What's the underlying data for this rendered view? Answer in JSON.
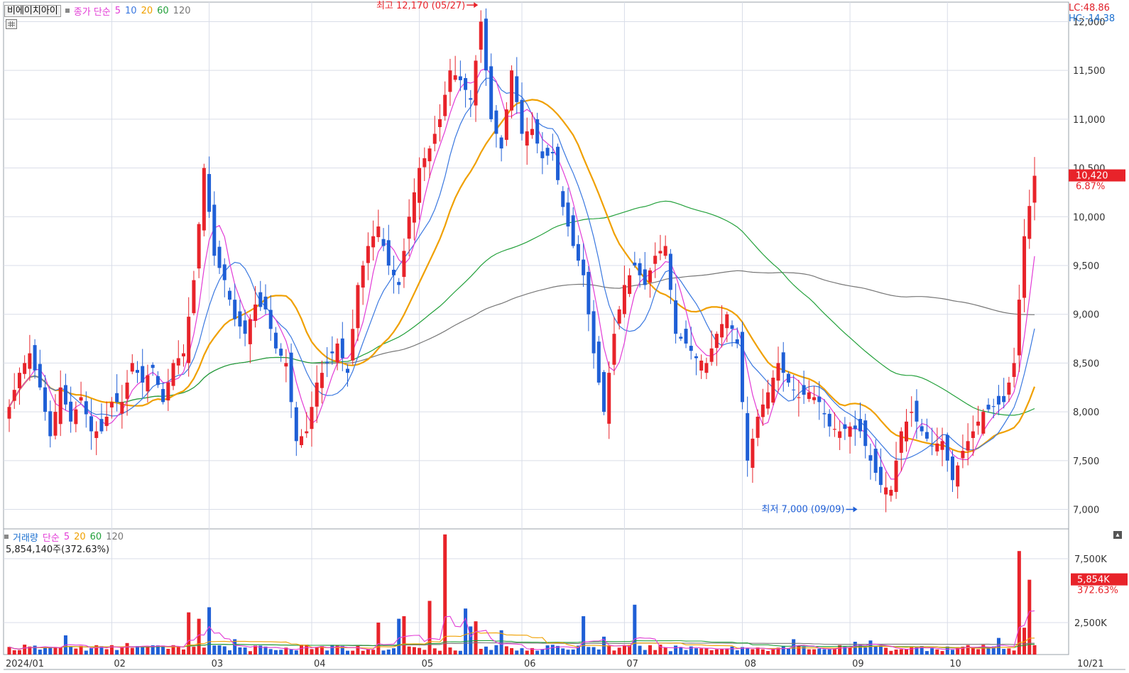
{
  "price_legend": {
    "name": "비에이치아이",
    "label": "종가 단순",
    "ma_labels": [
      "5",
      "10",
      "20",
      "60",
      "120"
    ]
  },
  "volume_legend": {
    "label": "거래량",
    "unit_label": "단순",
    "ma_labels": [
      "5",
      "20",
      "60",
      "120"
    ]
  },
  "volume_readout": "5,854,140주(372.63%)",
  "lc_label": "LC:48.86",
  "hc_label": "HC:-14.38",
  "colors": {
    "up": "#e8232a",
    "down": "#1f5fd6",
    "ma5": "#e23bd6",
    "ma10": "#3a78e0",
    "ma20": "#f0a000",
    "ma60": "#22a03a",
    "ma120": "#777777",
    "grid": "#d9dde8"
  },
  "icons": {
    "table": "table-icon",
    "collapse": "collapse-icon"
  },
  "chart_data": [
    {
      "type": "candlestick",
      "title": "",
      "ylim": [
        6800,
        12200
      ],
      "y_ticks": [
        "12,000",
        "11,500",
        "11,000",
        "10,500",
        "10,000",
        "9,500",
        "9,000",
        "8,500",
        "8,000",
        "7,500",
        "7,000"
      ],
      "y_tick_values": [
        12000,
        11500,
        11000,
        10500,
        10000,
        9500,
        9000,
        8500,
        8000,
        7500,
        7000
      ],
      "x_tick_labels": [
        "2024/01",
        "02",
        "03",
        "04",
        "05",
        "06",
        "07",
        "08",
        "09",
        "10",
        "10/21"
      ],
      "x_tick_days": [
        0,
        20,
        39,
        59,
        80,
        100,
        120,
        143,
        164,
        183,
        196
      ],
      "grid": true,
      "annotations": [
        {
          "text": "최고 12,170 (05/27)",
          "value": 12170,
          "day": 92,
          "kind": "high"
        },
        {
          "text": "최저 7,000 (09/09)",
          "value": 7000,
          "day": 166,
          "kind": "low"
        }
      ],
      "last_price_label": "10,420",
      "last_change_label": "6.87%",
      "last_price": 10420,
      "anchors": [
        [
          0,
          8050
        ],
        [
          2,
          8400
        ],
        [
          4,
          8600
        ],
        [
          6,
          8250
        ],
        [
          8,
          7750
        ],
        [
          10,
          8250
        ],
        [
          12,
          7900
        ],
        [
          14,
          8150
        ],
        [
          16,
          7800
        ],
        [
          18,
          7800
        ],
        [
          20,
          8100
        ],
        [
          22,
          8100
        ],
        [
          24,
          8500
        ],
        [
          26,
          8300
        ],
        [
          28,
          8450
        ],
        [
          30,
          8100
        ],
        [
          32,
          8500
        ],
        [
          34,
          8600
        ],
        [
          36,
          9350
        ],
        [
          38,
          10500
        ],
        [
          40,
          9600
        ],
        [
          42,
          9350
        ],
        [
          44,
          8950
        ],
        [
          46,
          8800
        ],
        [
          48,
          9100
        ],
        [
          50,
          9050
        ],
        [
          52,
          8650
        ],
        [
          54,
          8500
        ],
        [
          56,
          7700
        ],
        [
          58,
          7800
        ],
        [
          60,
          8300
        ],
        [
          62,
          8500
        ],
        [
          64,
          8700
        ],
        [
          66,
          8400
        ],
        [
          68,
          9300
        ],
        [
          70,
          9700
        ],
        [
          72,
          9900
        ],
        [
          74,
          9500
        ],
        [
          76,
          9300
        ],
        [
          78,
          10000
        ],
        [
          80,
          10500
        ],
        [
          82,
          10700
        ],
        [
          84,
          11000
        ],
        [
          86,
          11500
        ],
        [
          88,
          11400
        ],
        [
          90,
          11200
        ],
        [
          92,
          12000
        ],
        [
          94,
          11000
        ],
        [
          96,
          10700
        ],
        [
          98,
          11500
        ],
        [
          100,
          10850
        ],
        [
          102,
          10900
        ],
        [
          104,
          10600
        ],
        [
          106,
          10650
        ],
        [
          108,
          10100
        ],
        [
          110,
          9700
        ],
        [
          112,
          9400
        ],
        [
          114,
          8600
        ],
        [
          116,
          8000
        ],
        [
          118,
          8800
        ],
        [
          120,
          9300
        ],
        [
          122,
          9500
        ],
        [
          124,
          9300
        ],
        [
          126,
          9600
        ],
        [
          128,
          9700
        ],
        [
          130,
          8800
        ],
        [
          132,
          8700
        ],
        [
          134,
          8550
        ],
        [
          136,
          8500
        ],
        [
          138,
          8800
        ],
        [
          140,
          9000
        ],
        [
          142,
          8700
        ],
        [
          144,
          7500
        ],
        [
          146,
          7950
        ],
        [
          148,
          8200
        ],
        [
          150,
          8500
        ],
        [
          152,
          8300
        ],
        [
          154,
          8150
        ],
        [
          156,
          8200
        ],
        [
          158,
          8100
        ],
        [
          160,
          7850
        ],
        [
          162,
          7800
        ],
        [
          164,
          7850
        ],
        [
          166,
          7800
        ],
        [
          168,
          7500
        ],
        [
          170,
          7250
        ],
        [
          172,
          7200
        ],
        [
          174,
          7800
        ],
        [
          176,
          8000
        ],
        [
          178,
          7800
        ],
        [
          180,
          7650
        ],
        [
          182,
          7700
        ],
        [
          184,
          7300
        ],
        [
          186,
          7600
        ],
        [
          188,
          7800
        ],
        [
          190,
          8000
        ],
        [
          192,
          8050
        ],
        [
          194,
          8100
        ],
        [
          196,
          8500
        ],
        [
          198,
          9800
        ],
        [
          200,
          10420
        ]
      ],
      "moving_averages": [
        "5",
        "10",
        "20",
        "60",
        "120"
      ]
    },
    {
      "type": "bar",
      "title": "",
      "ylim": [
        0,
        9500000
      ],
      "y_ticks": [
        "7,500K",
        "2,500K"
      ],
      "y_tick_values": [
        7500000,
        2500000
      ],
      "last_volume_label": "5,854K",
      "last_volume_pct_label": "372.63%",
      "base_volume": 520000,
      "spikes": [
        [
          11,
          1500000
        ],
        [
          23,
          900000
        ],
        [
          30,
          700000
        ],
        [
          35,
          3300000
        ],
        [
          37,
          2800000
        ],
        [
          39,
          3700000
        ],
        [
          44,
          1200000
        ],
        [
          48,
          700000
        ],
        [
          72,
          2500000
        ],
        [
          76,
          2800000
        ],
        [
          77,
          3000000
        ],
        [
          82,
          4200000
        ],
        [
          85,
          9400000
        ],
        [
          89,
          3600000
        ],
        [
          90,
          2200000
        ],
        [
          91,
          2600000
        ],
        [
          96,
          1900000
        ],
        [
          112,
          3000000
        ],
        [
          116,
          1400000
        ],
        [
          122,
          3900000
        ],
        [
          153,
          1200000
        ],
        [
          165,
          1000000
        ],
        [
          168,
          1100000
        ],
        [
          193,
          1300000
        ],
        [
          197,
          8100000
        ],
        [
          198,
          2100000
        ],
        [
          199,
          5854000
        ]
      ],
      "moving_averages": [
        "5",
        "20",
        "60",
        "120"
      ]
    }
  ]
}
